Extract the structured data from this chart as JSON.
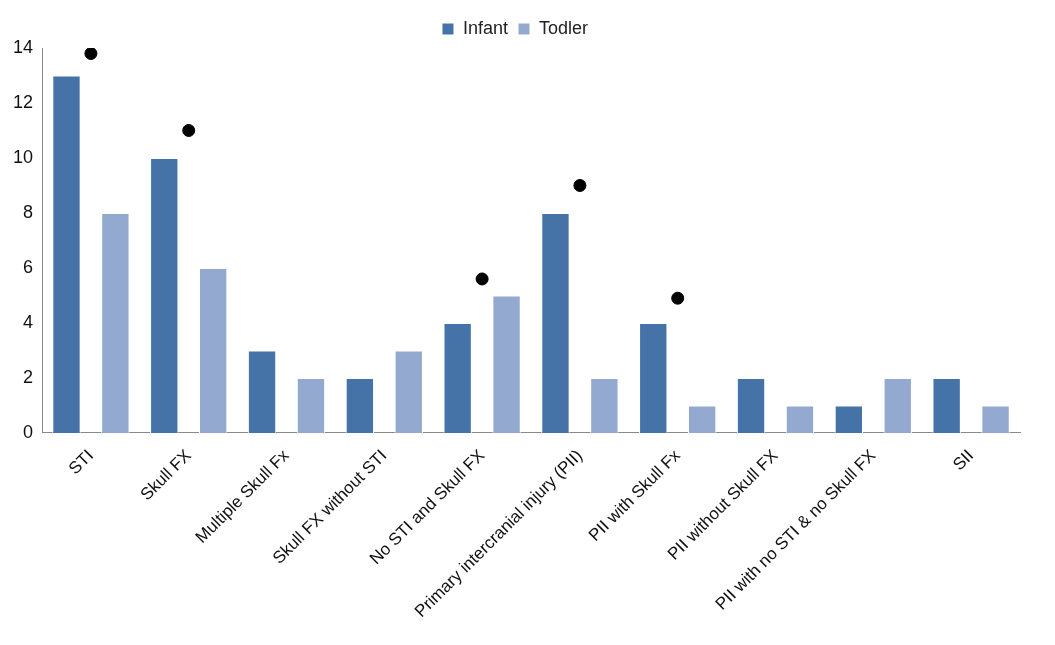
{
  "chart_data": {
    "type": "bar",
    "categories": [
      "STI",
      "Skull FX",
      "Multiple Skull Fx",
      "Skull FX without STI",
      "No STI and Skull FX",
      "Primary intercranial injury (PII)",
      "PII with Skull Fx",
      "PII without Skull FX",
      "PII with no STI & no Skull FX",
      "SII"
    ],
    "series": [
      {
        "name": "Infant",
        "color": "#4572a7",
        "values": [
          13,
          10,
          3,
          2,
          4,
          8,
          4,
          2,
          1,
          2
        ]
      },
      {
        "name": "Todler",
        "color": "#93a9d0",
        "values": [
          8,
          6,
          2,
          3,
          5,
          2,
          1,
          1,
          2,
          1
        ]
      },
      {
        "type": "scatter",
        "color": "#000000",
        "marker": "circle",
        "x": [
          "STI",
          "Skull FX",
          "No STI and Skull FX",
          "Primary intercranial injury (PII)",
          "PII with Skull Fx"
        ],
        "values": [
          13.8,
          11,
          5.6,
          9,
          4.9
        ]
      }
    ],
    "ylim": [
      0,
      14
    ],
    "yticks": [
      0,
      2,
      4,
      6,
      8,
      10,
      12,
      14
    ],
    "grid": false,
    "legend": "top"
  }
}
